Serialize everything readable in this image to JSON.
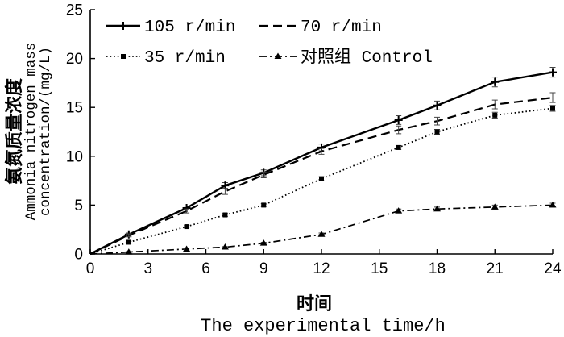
{
  "chart_data": {
    "type": "line",
    "xlabel": [
      "时间",
      "The experimental time/h"
    ],
    "ylabel": [
      "氨氮质量浓度",
      "Ammonia nitrogen mass",
      "concentration/(mg/L)"
    ],
    "xlim": [
      0,
      24
    ],
    "ylim": [
      0,
      25
    ],
    "xticks": [
      0,
      3,
      6,
      9,
      12,
      15,
      18,
      21,
      24
    ],
    "yticks": [
      0,
      5,
      10,
      15,
      20,
      25
    ],
    "grid": false,
    "legend": "top-left",
    "series": [
      {
        "name": "105 r/min",
        "line_style": "solid",
        "marker": "plus",
        "color": "#000000",
        "x": [
          0,
          2,
          5,
          7,
          9,
          12,
          16,
          18,
          21,
          24
        ],
        "y": [
          0,
          2.0,
          4.7,
          7.0,
          8.3,
          10.9,
          13.7,
          15.2,
          17.6,
          18.6
        ],
        "error": [
          0,
          0.15,
          0.2,
          0.3,
          0.3,
          0.35,
          0.45,
          0.45,
          0.5,
          0.5
        ]
      },
      {
        "name": "70 r/min",
        "line_style": "dashed",
        "marker": "none",
        "color": "#000000",
        "x": [
          0,
          2,
          5,
          7,
          9,
          12,
          16,
          18,
          21,
          24
        ],
        "y": [
          0,
          1.9,
          4.4,
          6.4,
          8.1,
          10.5,
          12.7,
          13.6,
          15.3,
          16.0
        ],
        "error": [
          0,
          0.15,
          0.2,
          0.3,
          0.3,
          0.3,
          0.4,
          0.4,
          0.45,
          0.5
        ]
      },
      {
        "name": "35 r/min",
        "line_style": "dotted",
        "marker": "square",
        "color": "#000000",
        "x": [
          0,
          2,
          5,
          7,
          9,
          12,
          16,
          18,
          21,
          24
        ],
        "y": [
          0,
          1.2,
          2.8,
          4.0,
          5.0,
          7.7,
          10.9,
          12.5,
          14.2,
          14.9
        ],
        "error": [
          0,
          0.1,
          0.1,
          0.15,
          0.15,
          0.2,
          0.2,
          0.25,
          0.3,
          0.3
        ]
      },
      {
        "name": "对照组 Control",
        "line_style": "dash-dot",
        "marker": "triangle",
        "color": "#000000",
        "x": [
          0,
          2,
          5,
          7,
          9,
          12,
          16,
          18,
          21,
          24
        ],
        "y": [
          0,
          0.2,
          0.5,
          0.7,
          1.1,
          2.0,
          4.4,
          4.6,
          4.8,
          5.0
        ],
        "error": [
          0,
          0.05,
          0.05,
          0.05,
          0.1,
          0.15,
          0.2,
          0.2,
          0.2,
          0.2
        ]
      }
    ]
  }
}
